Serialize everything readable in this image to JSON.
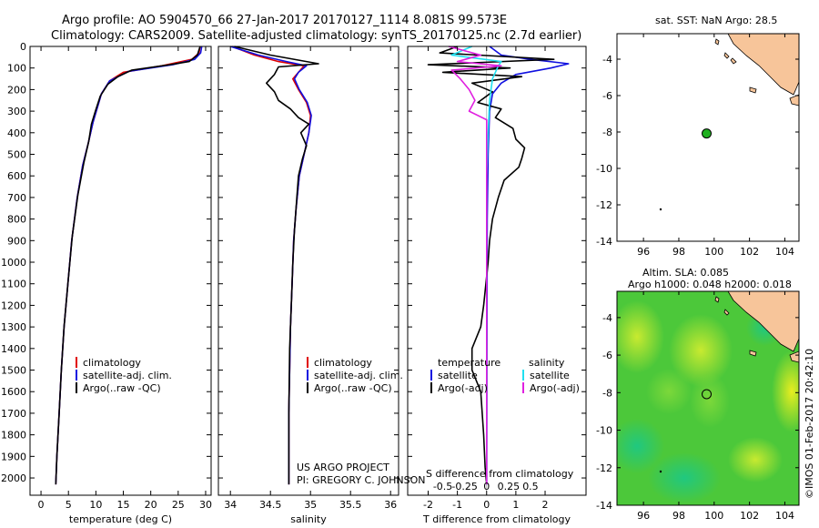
{
  "header": {
    "line1": "Argo profile: AO 5904570_66 27-Jan-2017 20170127_1114 8.081S 99.573E",
    "line2": "Climatology: CARS2009. Satellite-adjusted climatology: synTS_20170125.nc (2.7d earlier)"
  },
  "credit": "US ARGO PROJECT",
  "pi": "PI: GREGORY C. JOHNSON",
  "imos": "©IMOS 01-Feb-2017 20:42:10",
  "colors": {
    "climatology": "#e00000",
    "satellite": "#1010e0",
    "argo": "#000000",
    "cyan": "#20e0f0",
    "magenta": "#e020e0",
    "land": "#f7c59a",
    "argo_marker": "#20b020"
  },
  "chart_data": [
    {
      "type": "line",
      "id": "temperature",
      "xlabel": "temperature (deg C)",
      "xlim": [
        -2,
        31
      ],
      "ylim": [
        2080,
        0
      ],
      "xticks": [
        "0",
        "5",
        "10",
        "15",
        "20",
        "25",
        "30"
      ],
      "xtick_values": [
        0,
        5,
        10,
        15,
        20,
        25,
        30
      ],
      "yticks": [
        "0",
        "100",
        "200",
        "300",
        "400",
        "500",
        "600",
        "700",
        "800",
        "900",
        "1000",
        "1100",
        "1200",
        "1300",
        "1400",
        "1500",
        "1600",
        "1700",
        "1800",
        "1900",
        "2000"
      ],
      "ytick_values": [
        0,
        100,
        200,
        300,
        400,
        500,
        600,
        700,
        800,
        900,
        1000,
        1100,
        1200,
        1300,
        1400,
        1500,
        1600,
        1700,
        1800,
        1900,
        2000
      ],
      "legend": [
        "climatology",
        "satellite-adj. clim.",
        "Argo(..raw -QC)"
      ],
      "series": [
        {
          "name": "climatology",
          "color": "#e00000",
          "points": [
            [
              29,
              0
            ],
            [
              28.8,
              30
            ],
            [
              27.5,
              60
            ],
            [
              22,
              90
            ],
            [
              15,
              120
            ],
            [
              12.5,
              160
            ],
            [
              11,
              220
            ],
            [
              10.3,
              280
            ],
            [
              9.5,
              350
            ],
            [
              8.6,
              450
            ],
            [
              7.6,
              550
            ],
            [
              6.6,
              700
            ],
            [
              5.6,
              900
            ],
            [
              4.9,
              1100
            ],
            [
              4.2,
              1300
            ],
            [
              3.7,
              1500
            ],
            [
              3.3,
              1700
            ],
            [
              2.9,
              1900
            ],
            [
              2.7,
              2030
            ]
          ]
        },
        {
          "name": "satellite-adj. clim.",
          "color": "#1010e0",
          "points": [
            [
              29.3,
              0
            ],
            [
              29.1,
              30
            ],
            [
              28,
              60
            ],
            [
              24,
              85
            ],
            [
              16,
              115
            ],
            [
              12.5,
              160
            ],
            [
              11,
              220
            ],
            [
              10.3,
              280
            ],
            [
              9.5,
              350
            ],
            [
              8.6,
              450
            ],
            [
              7.6,
              550
            ],
            [
              6.6,
              700
            ],
            [
              5.6,
              900
            ],
            [
              4.9,
              1100
            ],
            [
              4.2,
              1300
            ],
            [
              3.7,
              1500
            ],
            [
              3.3,
              1700
            ],
            [
              2.9,
              1900
            ],
            [
              2.7,
              2030
            ]
          ]
        },
        {
          "name": "Argo",
          "color": "#000000",
          "points": [
            [
              29,
              0
            ],
            [
              28.5,
              40
            ],
            [
              27,
              70
            ],
            [
              23.5,
              85
            ],
            [
              16.5,
              110
            ],
            [
              14,
              140
            ],
            [
              12.2,
              175
            ],
            [
              10.8,
              230
            ],
            [
              9.9,
              300
            ],
            [
              9.2,
              360
            ],
            [
              8.7,
              440
            ],
            [
              7.8,
              540
            ],
            [
              6.7,
              690
            ],
            [
              5.7,
              880
            ],
            [
              4.9,
              1100
            ],
            [
              4.2,
              1300
            ],
            [
              3.7,
              1500
            ],
            [
              3.3,
              1700
            ],
            [
              2.9,
              1900
            ],
            [
              2.7,
              2030
            ]
          ]
        }
      ]
    },
    {
      "type": "line",
      "id": "salinity",
      "xlabel": "salinity",
      "xlim": [
        33.85,
        36.1
      ],
      "ylim": [
        2080,
        0
      ],
      "xticks": [
        "34",
        "34.5",
        "35",
        "35.5",
        "36"
      ],
      "xtick_values": [
        34,
        34.5,
        35,
        35.5,
        36
      ],
      "legend": [
        "climatology",
        "satellite-adj. clim.",
        "Argo(..raw -QC)"
      ],
      "series": [
        {
          "name": "climatology",
          "color": "#e00000",
          "points": [
            [
              34.02,
              0
            ],
            [
              34.3,
              40
            ],
            [
              34.6,
              70
            ],
            [
              34.92,
              90
            ],
            [
              34.85,
              120
            ],
            [
              34.78,
              150
            ],
            [
              34.85,
              200
            ],
            [
              34.95,
              260
            ],
            [
              35.0,
              320
            ],
            [
              34.98,
              400
            ],
            [
              34.92,
              500
            ],
            [
              34.86,
              600
            ],
            [
              34.82,
              750
            ],
            [
              34.79,
              900
            ],
            [
              34.77,
              1100
            ],
            [
              34.75,
              1300
            ],
            [
              34.74,
              1500
            ],
            [
              34.73,
              1700
            ],
            [
              34.73,
              2030
            ]
          ]
        },
        {
          "name": "satellite-adj. clim.",
          "color": "#1010e0",
          "points": [
            [
              34.0,
              0
            ],
            [
              34.35,
              40
            ],
            [
              34.7,
              70
            ],
            [
              34.95,
              90
            ],
            [
              34.85,
              120
            ],
            [
              34.8,
              150
            ],
            [
              34.86,
              200
            ],
            [
              34.96,
              260
            ],
            [
              35.01,
              320
            ],
            [
              34.98,
              400
            ],
            [
              34.92,
              500
            ],
            [
              34.86,
              600
            ],
            [
              34.82,
              750
            ],
            [
              34.79,
              900
            ],
            [
              34.77,
              1100
            ],
            [
              34.75,
              1300
            ],
            [
              34.74,
              1500
            ],
            [
              34.73,
              1700
            ],
            [
              34.73,
              2030
            ]
          ]
        },
        {
          "name": "Argo",
          "color": "#000000",
          "points": [
            [
              34.05,
              0
            ],
            [
              34.5,
              40
            ],
            [
              35.1,
              80
            ],
            [
              34.6,
              95
            ],
            [
              34.55,
              130
            ],
            [
              34.45,
              170
            ],
            [
              34.55,
              210
            ],
            [
              34.6,
              250
            ],
            [
              34.75,
              290
            ],
            [
              34.85,
              330
            ],
            [
              34.98,
              360
            ],
            [
              34.88,
              400
            ],
            [
              34.95,
              460
            ],
            [
              34.9,
              520
            ],
            [
              34.85,
              600
            ],
            [
              34.83,
              700
            ],
            [
              34.8,
              850
            ],
            [
              34.78,
              1000
            ],
            [
              34.76,
              1200
            ],
            [
              34.74,
              1400
            ],
            [
              34.73,
              1700
            ],
            [
              34.73,
              2030
            ]
          ]
        }
      ]
    },
    {
      "type": "line",
      "id": "differences",
      "xlabel": "T difference from climatology",
      "xlabel_top": "S difference from climatology",
      "xlim": [
        -2.7,
        3.4
      ],
      "ylim": [
        2080,
        0
      ],
      "xticks": [
        "-2",
        "-1",
        "0",
        "1",
        "2"
      ],
      "xtick_values": [
        -2,
        -1,
        0,
        1,
        2
      ],
      "xticks_s": [
        "-0.5",
        "-0.25",
        "0",
        "0.25",
        "0.5"
      ],
      "xtick_s_values": [
        -1.5,
        -0.75,
        0,
        0.75,
        1.5
      ],
      "legend_temperature": {
        "title": "temperature",
        "items": [
          "satellite",
          "Argo(-adj)"
        ]
      },
      "legend_salinity": {
        "title": "salinity",
        "items": [
          "satellite",
          "Argo(-adj)"
        ]
      },
      "series": [
        {
          "name": "T satellite",
          "color": "#1010e0",
          "points": [
            [
              0.1,
              0
            ],
            [
              0.5,
              40
            ],
            [
              1.5,
              60
            ],
            [
              2.8,
              80
            ],
            [
              2.2,
              100
            ],
            [
              1.0,
              130
            ],
            [
              0.5,
              170
            ],
            [
              0.2,
              220
            ],
            [
              0.1,
              300
            ],
            [
              0.05,
              500
            ],
            [
              0.02,
              800
            ],
            [
              0,
              2030
            ]
          ]
        },
        {
          "name": "T Argo(-adj)",
          "color": "#000000",
          "points": [
            [
              -1.0,
              0
            ],
            [
              -1.6,
              30
            ],
            [
              2.3,
              60
            ],
            [
              -2.0,
              85
            ],
            [
              0.8,
              100
            ],
            [
              -1.5,
              120
            ],
            [
              1.2,
              140
            ],
            [
              -0.5,
              170
            ],
            [
              0.2,
              210
            ],
            [
              -0.3,
              260
            ],
            [
              0.5,
              290
            ],
            [
              0.3,
              330
            ],
            [
              0.9,
              380
            ],
            [
              1.0,
              430
            ],
            [
              1.3,
              470
            ],
            [
              1.2,
              520
            ],
            [
              1.1,
              560
            ],
            [
              0.6,
              620
            ],
            [
              0.4,
              700
            ],
            [
              0.2,
              800
            ],
            [
              0.1,
              900
            ],
            [
              0.05,
              1000
            ],
            [
              -0.1,
              1200
            ],
            [
              -0.2,
              1300
            ],
            [
              -0.5,
              1400
            ],
            [
              -0.5,
              1500
            ],
            [
              -0.2,
              1600
            ],
            [
              -0.1,
              1800
            ],
            [
              -0.05,
              1950
            ],
            [
              0,
              2030
            ]
          ]
        },
        {
          "name": "S satellite",
          "color": "#20e0f0",
          "points": [
            [
              -0.5,
              0
            ],
            [
              -1.2,
              40
            ],
            [
              0.5,
              70
            ],
            [
              0.4,
              90
            ],
            [
              0.2,
              150
            ],
            [
              0.1,
              250
            ],
            [
              0.05,
              400
            ],
            [
              0,
              600
            ],
            [
              0,
              2030
            ]
          ]
        },
        {
          "name": "S Argo(-adj)",
          "color": "#e020e0",
          "points": [
            [
              -1.3,
              0
            ],
            [
              -0.2,
              40
            ],
            [
              -1.0,
              70
            ],
            [
              0.5,
              90
            ],
            [
              -1.2,
              110
            ],
            [
              -0.9,
              150
            ],
            [
              -0.6,
              200
            ],
            [
              -0.4,
              250
            ],
            [
              -0.6,
              300
            ],
            [
              0,
              340
            ],
            [
              0,
              2030
            ]
          ]
        }
      ]
    },
    {
      "type": "scatter",
      "id": "map-sst",
      "title": "sat. SST: NaN Argo: 28.5",
      "xlim": [
        94.5,
        104.8
      ],
      "ylim": [
        -14,
        -2.6
      ],
      "xticks": [
        "96",
        "98",
        "100",
        "102",
        "104"
      ],
      "xtick_values": [
        96,
        98,
        100,
        102,
        104
      ],
      "yticks": [
        "-4",
        "-6",
        "-8",
        "-10",
        "-12",
        "-14"
      ],
      "ytick_values": [
        -4,
        -6,
        -8,
        -10,
        -12,
        -14
      ],
      "argo_position": [
        99.573,
        -8.081
      ]
    },
    {
      "type": "heatmap",
      "id": "map-sla",
      "title_line1": "Altim. SLA: 0.085",
      "title_line2": "Argo h1000: 0.048 h2000: 0.018",
      "xlim": [
        94.5,
        104.8
      ],
      "ylim": [
        -14,
        -2.6
      ],
      "xticks": [
        "96",
        "98",
        "100",
        "102",
        "104"
      ],
      "xtick_values": [
        96,
        98,
        100,
        102,
        104
      ],
      "yticks": [
        "-4",
        "-6",
        "-8",
        "-10",
        "-12",
        "-14"
      ],
      "ytick_values": [
        -4,
        -6,
        -8,
        -10,
        -12,
        -14
      ],
      "argo_position": [
        99.573,
        -8.081
      ]
    }
  ]
}
